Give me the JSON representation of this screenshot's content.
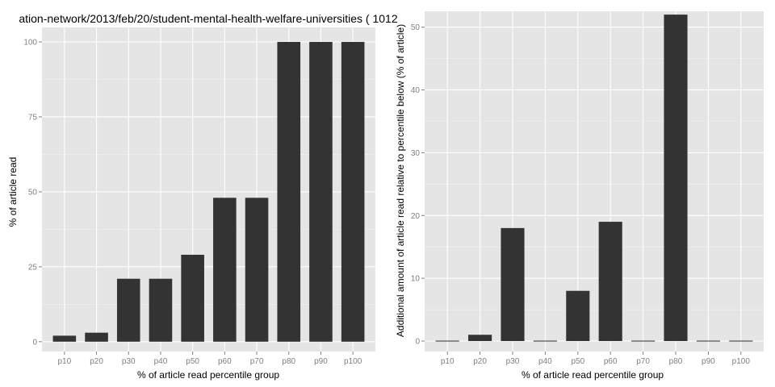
{
  "chart_data": [
    {
      "type": "bar",
      "title": "ation-network/2013/feb/20/student-mental-health-welfare-universities ( 1012",
      "xlabel": "% of article read percentile group",
      "ylabel": "% of article read",
      "categories": [
        "p10",
        "p20",
        "p30",
        "p40",
        "p50",
        "p60",
        "p70",
        "p80",
        "p90",
        "p100"
      ],
      "values": [
        2,
        3,
        21,
        21,
        29,
        48,
        48,
        100,
        100,
        100
      ],
      "ylim": [
        0,
        100
      ],
      "yticks": [
        0,
        25,
        50,
        75,
        100
      ],
      "grid": true,
      "bar_color": "#333333"
    },
    {
      "type": "bar",
      "title": "",
      "xlabel": "% of article read percentile group",
      "ylabel": "Additional amount of article read relative to percentile below (% of article)",
      "categories": [
        "p10",
        "p20",
        "p30",
        "p40",
        "p50",
        "p60",
        "p70",
        "p80",
        "p90",
        "p100"
      ],
      "values": [
        0,
        1,
        18,
        0,
        8,
        19,
        0,
        52,
        0,
        0
      ],
      "ylim": [
        0,
        52
      ],
      "yticks": [
        0,
        10,
        20,
        30,
        40,
        50
      ],
      "grid": true,
      "bar_color": "#333333"
    }
  ]
}
